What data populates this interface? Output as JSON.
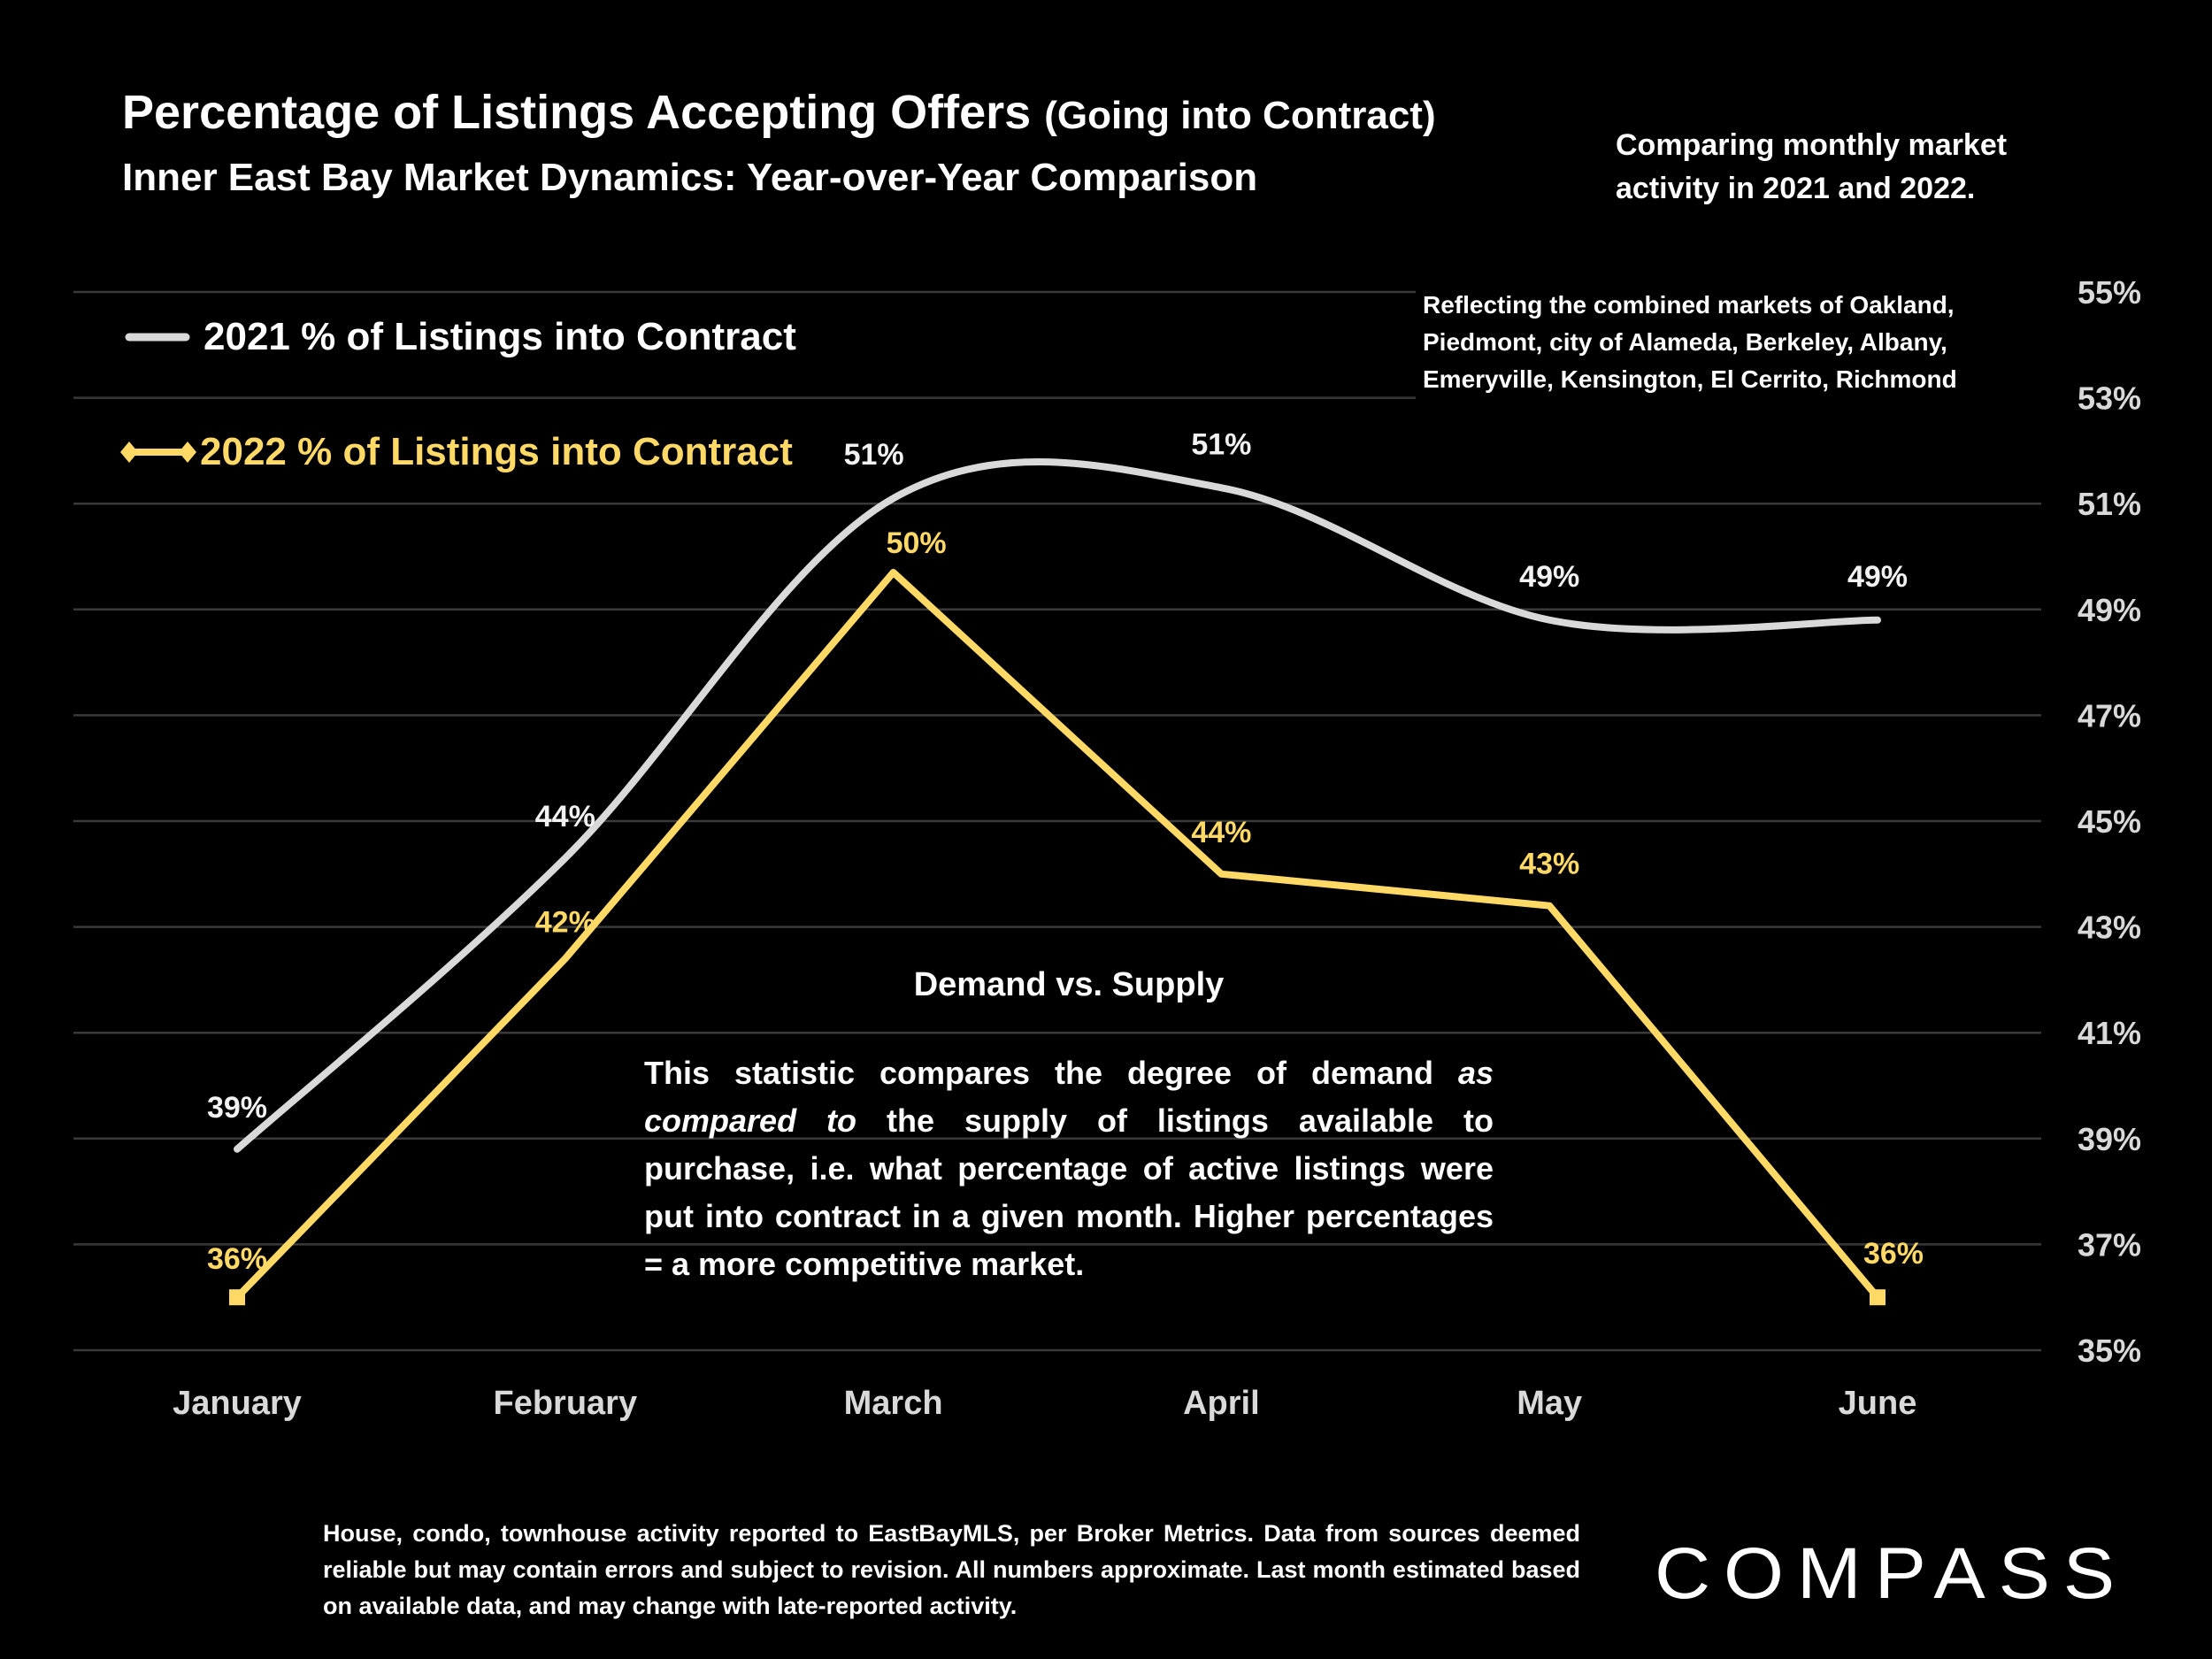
{
  "header": {
    "title": "Percentage of Listings Accepting Offers",
    "title_paren": "(Going into Contract)",
    "subtitle": "Inner East Bay Market Dynamics: Year-over-Year Comparison",
    "compare_note": "Comparing monthly market activity in 2021 and 2022.",
    "markets_note": "Reflecting the combined markets of Oakland, Piedmont, city of Alameda, Berkeley, Albany, Emeryville, Kensington, El Cerrito, Richmond"
  },
  "annotation": {
    "title": "Demand vs. Supply",
    "body_part1": "This statistic compares the degree of demand ",
    "body_italic": "as compared to",
    "body_part2": " the supply of listings available to purchase, i.e. what percentage of active listings were put into contract in a given month. Higher percentages = a more competitive market."
  },
  "footer": {
    "text": "House, condo, townhouse activity reported to EastBayMLS, per Broker Metrics. Data from sources deemed reliable but may contain errors and subject to revision. All numbers approximate. Last month estimated based on available data, and may change with late-reported activity."
  },
  "logo": {
    "text": "COMPASS"
  },
  "chart_data": {
    "type": "line",
    "categories": [
      "January",
      "February",
      "March",
      "April",
      "May",
      "June"
    ],
    "ylim": [
      35,
      55
    ],
    "yticks": [
      35,
      37,
      39,
      41,
      43,
      45,
      47,
      49,
      51,
      53,
      55
    ],
    "ytick_labels": [
      "35%",
      "37%",
      "39%",
      "41%",
      "43%",
      "45%",
      "47%",
      "49%",
      "51%",
      "53%",
      "55%"
    ],
    "y_axis_position": "right",
    "grid": true,
    "legend_placement": "top-left",
    "series": [
      {
        "name": "2021 % of Listings into Contract",
        "values": [
          38.8,
          44.3,
          51.1,
          51.3,
          48.8,
          48.8
        ],
        "labels": [
          "39%",
          "44%",
          "51%",
          "51%",
          "49%",
          "49%"
        ],
        "color": "#d9d9d9",
        "smooth": true
      },
      {
        "name": "2022 % of Listings into Contract",
        "values": [
          36.0,
          42.4,
          49.7,
          44.0,
          43.4,
          36.0
        ],
        "labels": [
          "36%",
          "42%",
          "50%",
          "44%",
          "43%",
          "36%"
        ],
        "color": "#ffd966",
        "smooth": false
      }
    ]
  }
}
